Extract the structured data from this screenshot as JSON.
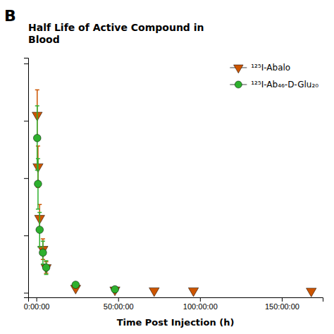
{
  "chart_data": {
    "type": "scatter",
    "title": "Half Life of Active Compound in\nBlood",
    "annotations": [
      "B"
    ],
    "xlabel": "Time Post Injection (h)",
    "series": [
      {
        "name": "¹²⁵I-Abalo",
        "color": "#cc5500",
        "marker": "triangle-down",
        "x": [
          0.5,
          1,
          2,
          4,
          6,
          24,
          48,
          72,
          96,
          168
        ],
        "values": [
          1.55,
          1.1,
          0.65,
          0.38,
          0.22,
          0.04,
          0.025,
          0.018,
          0.018,
          0.015
        ],
        "errors": [
          0.22,
          0.18,
          0.12,
          0.09,
          0.05,
          0.012,
          0.008,
          0.005,
          0.005,
          0.004
        ]
      },
      {
        "name": "¹²⁵I-Ab₄₆-D-Glu₂₀",
        "color": "#2db02d",
        "marker": "circle",
        "x": [
          0.5,
          1,
          2,
          4,
          6,
          24,
          48
        ],
        "values": [
          1.35,
          0.95,
          0.55,
          0.35,
          0.22,
          0.07,
          0.03
        ],
        "errors": [
          0.28,
          0.22,
          0.15,
          0.1,
          0.06,
          0.02,
          0.01
        ]
      }
    ],
    "xlim": [
      -5,
      175
    ],
    "ylim": [
      -0.04,
      2.05
    ],
    "xticks": [
      {
        "value": 0,
        "label": "0:00:00"
      },
      {
        "value": 50,
        "label": "50:00:00"
      },
      {
        "value": 100,
        "label": "100:00:00"
      },
      {
        "value": 150,
        "label": "150:00:00"
      }
    ],
    "yticks": [
      0,
      0.5,
      1,
      1.5,
      2
    ],
    "tick_labels": "x",
    "grid": false,
    "legend": "upper right"
  }
}
